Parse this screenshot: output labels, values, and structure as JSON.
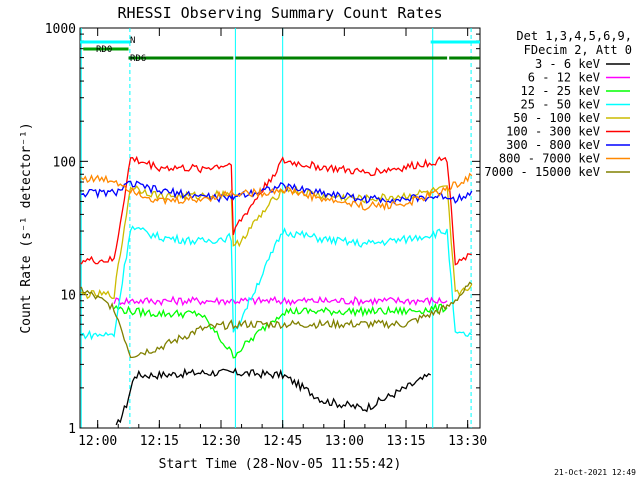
{
  "chart_data": {
    "type": "line",
    "title": "RHESSI Observing Summary Count Rates",
    "xlabel": "Start Time (28-Nov-05 11:55:42)",
    "ylabel": "Count Rate (s⁻¹ detector⁻¹)",
    "y_scale": "log",
    "ylim": [
      1,
      1000
    ],
    "xlim": [
      "11:55:42",
      "13:33:00"
    ],
    "x_ticks": [
      "12:00",
      "12:15",
      "12:30",
      "12:45",
      "13:00",
      "13:15",
      "13:30"
    ],
    "y_ticks": [
      "1",
      "10",
      "100",
      "1000"
    ],
    "legend_header": [
      "Det 1,3,4,5,6,9,",
      "FDecim 2, Att 0"
    ],
    "legend_position": "top-right",
    "timestamp": "21-Oct-2021 12:49",
    "flags": [
      {
        "label": "N",
        "color": "#00ffff",
        "segments": [
          [
            "11:55:42",
            "12:08:00"
          ],
          [
            "13:21:00",
            "13:33:00"
          ]
        ]
      },
      {
        "label": "RD0",
        "color": "#00a000",
        "segments": [
          [
            "11:56:30",
            "12:07:30"
          ]
        ]
      },
      {
        "label": "RD6",
        "color": "#008000",
        "segments": [
          [
            "12:07:30",
            "12:33:00"
          ],
          [
            "12:33:30",
            "12:45:00"
          ],
          [
            "12:45:00",
            "13:25:00"
          ],
          [
            "13:25:30",
            "13:33:00"
          ]
        ]
      }
    ],
    "vlines": [
      {
        "x": "12:07:50",
        "style": "dashed",
        "color": "#00ffff"
      },
      {
        "x": "13:21:30",
        "style": "solid",
        "color": "#00ffff"
      },
      {
        "x": "13:30:50",
        "style": "dashed",
        "color": "#00ffff"
      },
      {
        "x": "11:56:00",
        "style": "solid",
        "color": "#00ffff"
      },
      {
        "x": "12:33:30",
        "style": "solid",
        "color": "#00ffff"
      },
      {
        "x": "12:45:00",
        "style": "solid",
        "color": "#00ffff"
      }
    ],
    "series": [
      {
        "name": "3 - 6 keV",
        "color": "#000000",
        "points": [
          [
            "12:04:30",
            1
          ],
          [
            "12:07:00",
            1.5
          ],
          [
            "12:09:00",
            2.5
          ],
          [
            "12:15:00",
            2.5
          ],
          [
            "12:25:00",
            2.6
          ],
          [
            "12:33:00",
            2.6
          ],
          [
            "12:45:00",
            2.5
          ],
          [
            "12:55:00",
            1.6
          ],
          [
            "13:05:00",
            1.4
          ],
          [
            "13:15:00",
            2
          ],
          [
            "13:21:00",
            2.5
          ]
        ]
      },
      {
        "name": "6 - 12 keV",
        "color": "#ff00ff",
        "points": [
          [
            "12:04:00",
            9
          ],
          [
            "12:08:00",
            9
          ],
          [
            "12:15:00",
            9
          ],
          [
            "12:25:00",
            9
          ],
          [
            "12:33:00",
            9
          ],
          [
            "12:45:00",
            9
          ],
          [
            "12:55:00",
            9
          ],
          [
            "13:05:00",
            9
          ],
          [
            "13:15:00",
            9
          ],
          [
            "13:25:00",
            9
          ]
        ]
      },
      {
        "name": "12 - 25 keV",
        "color": "#00ff00",
        "points": [
          [
            "12:04:00",
            8
          ],
          [
            "12:08:00",
            7.5
          ],
          [
            "12:15:00",
            7.2
          ],
          [
            "12:25:00",
            7.2
          ],
          [
            "12:33:00",
            3.5
          ],
          [
            "12:45:00",
            7.5
          ],
          [
            "12:55:00",
            7.5
          ],
          [
            "13:05:00",
            7.5
          ],
          [
            "13:15:00",
            7.5
          ],
          [
            "13:25:00",
            8
          ]
        ]
      },
      {
        "name": "25 - 50 keV",
        "color": "#00ffff",
        "points": [
          [
            "11:56:00",
            5
          ],
          [
            "12:00:00",
            5
          ],
          [
            "12:04:00",
            5
          ],
          [
            "12:08:00",
            32
          ],
          [
            "12:15:00",
            27
          ],
          [
            "12:25:00",
            25
          ],
          [
            "12:32:30",
            27
          ],
          [
            "12:33:00",
            5
          ],
          [
            "12:45:00",
            30
          ],
          [
            "12:55:00",
            26
          ],
          [
            "13:05:00",
            24
          ],
          [
            "13:15:00",
            26
          ],
          [
            "13:25:00",
            30
          ],
          [
            "13:27:00",
            5
          ],
          [
            "13:31:00",
            5
          ]
        ]
      },
      {
        "name": "50 - 100 keV",
        "color": "#ccbb00",
        "points": [
          [
            "11:56:00",
            10
          ],
          [
            "12:04:00",
            10
          ],
          [
            "12:08:00",
            65
          ],
          [
            "12:15:00",
            55
          ],
          [
            "12:25:00",
            55
          ],
          [
            "12:32:30",
            58
          ],
          [
            "12:33:00",
            22
          ],
          [
            "12:45:00",
            62
          ],
          [
            "12:55:00",
            55
          ],
          [
            "13:05:00",
            52
          ],
          [
            "13:15:00",
            55
          ],
          [
            "13:25:00",
            62
          ],
          [
            "13:27:00",
            10
          ],
          [
            "13:31:00",
            12
          ]
        ]
      },
      {
        "name": "100 - 300 keV",
        "color": "#ff0000",
        "points": [
          [
            "11:56:00",
            18
          ],
          [
            "12:04:00",
            18
          ],
          [
            "12:08:00",
            105
          ],
          [
            "12:15:00",
            90
          ],
          [
            "12:25:00",
            88
          ],
          [
            "12:32:30",
            95
          ],
          [
            "12:33:00",
            30
          ],
          [
            "12:45:00",
            100
          ],
          [
            "12:55:00",
            90
          ],
          [
            "13:05:00",
            82
          ],
          [
            "13:15:00",
            90
          ],
          [
            "13:25:00",
            105
          ],
          [
            "13:27:00",
            18
          ],
          [
            "13:31:00",
            20
          ]
        ]
      },
      {
        "name": "300 - 800 keV",
        "color": "#0000ff",
        "points": [
          [
            "11:56:00",
            58
          ],
          [
            "12:04:00",
            58
          ],
          [
            "12:08:00",
            68
          ],
          [
            "12:15:00",
            60
          ],
          [
            "12:25:00",
            55
          ],
          [
            "12:32:30",
            52
          ],
          [
            "12:33:00",
            55
          ],
          [
            "12:45:00",
            65
          ],
          [
            "12:55:00",
            58
          ],
          [
            "13:05:00",
            52
          ],
          [
            "13:15:00",
            52
          ],
          [
            "13:25:00",
            55
          ],
          [
            "13:27:00",
            52
          ],
          [
            "13:31:00",
            60
          ]
        ]
      },
      {
        "name": "800 - 7000 keV",
        "color": "#ff8800",
        "points": [
          [
            "11:56:00",
            75
          ],
          [
            "12:04:00",
            72
          ],
          [
            "12:08:00",
            62
          ],
          [
            "12:15:00",
            50
          ],
          [
            "12:25:00",
            52
          ],
          [
            "12:32:30",
            58
          ],
          [
            "12:40:00",
            58
          ],
          [
            "12:45:00",
            62
          ],
          [
            "12:55:00",
            52
          ],
          [
            "13:05:00",
            46
          ],
          [
            "13:15:00",
            48
          ],
          [
            "13:25:00",
            62
          ],
          [
            "13:31:00",
            78
          ]
        ]
      },
      {
        "name": "7000 - 15000 keV",
        "color": "#808000",
        "points": [
          [
            "11:56:00",
            11
          ],
          [
            "12:04:00",
            8
          ],
          [
            "12:08:00",
            3.5
          ],
          [
            "12:15:00",
            4
          ],
          [
            "12:25:00",
            5.5
          ],
          [
            "12:33:00",
            6
          ],
          [
            "12:45:00",
            6
          ],
          [
            "12:55:00",
            6
          ],
          [
            "13:05:00",
            6
          ],
          [
            "13:15:00",
            6
          ],
          [
            "13:25:00",
            8
          ],
          [
            "13:31:00",
            12
          ]
        ]
      }
    ]
  }
}
